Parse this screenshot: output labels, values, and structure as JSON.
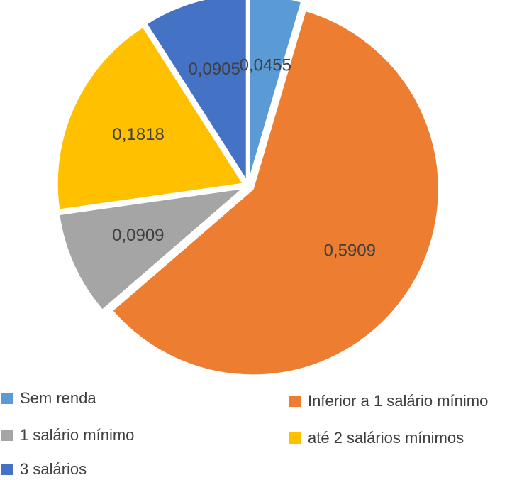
{
  "chart_data": {
    "type": "pie",
    "title": "",
    "slices": [
      {
        "label": "Sem renda",
        "value": 0.0455,
        "value_label": "0,0455",
        "color": "#5B9BD5"
      },
      {
        "label": "Inferior a 1 salário mínimo",
        "value": 0.5909,
        "value_label": "0,5909",
        "color": "#ED7D31"
      },
      {
        "label": "1 salário mínimo",
        "value": 0.0909,
        "value_label": "0,0909",
        "color": "#A5A5A5"
      },
      {
        "label": "até 2 salários mínimos",
        "value": 0.1818,
        "value_label": "0,1818",
        "color": "#FFC000"
      },
      {
        "label": "3 salários",
        "value": 0.0905,
        "value_label": "0,0905",
        "color": "#4472C4"
      }
    ],
    "legend_position": "bottom"
  }
}
